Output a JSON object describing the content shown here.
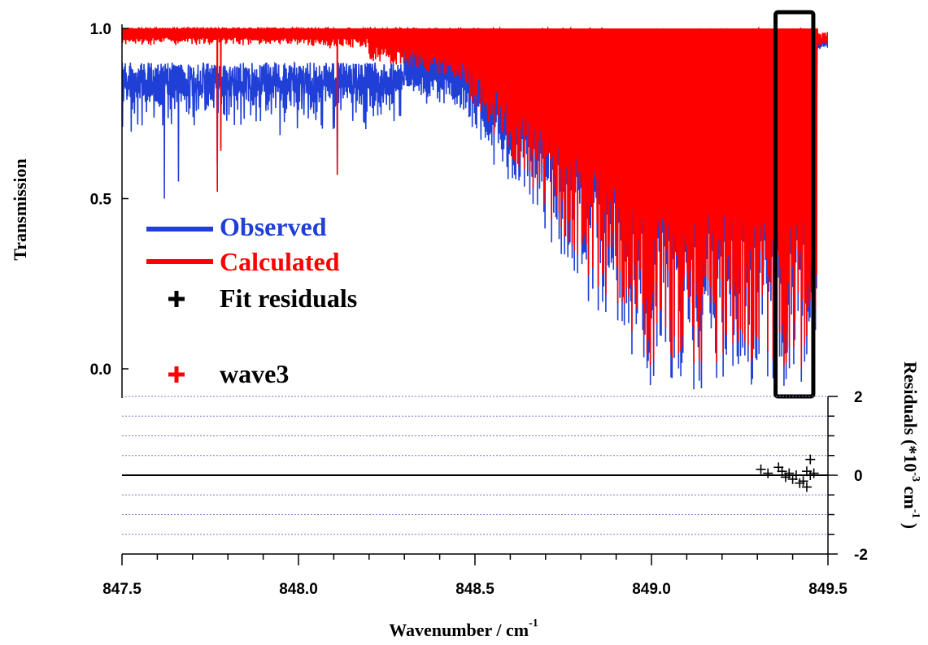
{
  "chart_data": {
    "type": "line",
    "top_panel": {
      "ylabel": "Transmission",
      "y_ticks": [
        "0.0",
        "0.5",
        "1.0"
      ],
      "y_tick_values": [
        0.0,
        0.5,
        1.0
      ],
      "ylim": [
        -0.08,
        1.0
      ],
      "series": [
        {
          "name": "Observed",
          "color": "#1f3fd6",
          "style": "line"
        },
        {
          "name": "Calculated",
          "color": "#ff0000",
          "style": "line"
        },
        {
          "name": "Fit residuals",
          "color": "#000000",
          "style": "plus"
        },
        {
          "name": "wave3",
          "color": "#ff0000",
          "style": "plus"
        }
      ],
      "highlight_box_x_range": [
        849.37,
        849.44
      ],
      "absorption_lines_sample": [
        {
          "x": 847.62,
          "observed": 0.5,
          "calculated": 0.97
        },
        {
          "x": 847.77,
          "observed": 0.62,
          "calculated": 0.52
        },
        {
          "x": 848.11,
          "observed": 0.57,
          "calculated": 0.57
        },
        {
          "x": 848.5,
          "observed": 0.45,
          "calculated": 0.5
        },
        {
          "x": 848.75,
          "observed": 0.02,
          "calculated": 0.05
        },
        {
          "x": 849.0,
          "observed": 0.0,
          "calculated": 0.05
        },
        {
          "x": 849.2,
          "observed": -0.07,
          "calculated": 0.0
        },
        {
          "x": 849.4,
          "observed": -0.05,
          "calculated": 0.02
        },
        {
          "x": 849.49,
          "observed": 0.99,
          "calculated": 0.99
        }
      ]
    },
    "bottom_panel": {
      "ylabel": "Residuals (*10",
      "ylabel_sup1": "-3",
      "ylabel_unit": "cm",
      "ylabel_sup2": "-1",
      "ylabel_close": ")",
      "y_ticks": [
        "-2",
        "0",
        "2"
      ],
      "y_tick_values": [
        -2,
        0,
        2
      ],
      "ylim": [
        -2,
        2
      ],
      "residuals": [
        {
          "x": 849.31,
          "y": 0.15
        },
        {
          "x": 849.33,
          "y": 0.05
        },
        {
          "x": 849.36,
          "y": 0.2
        },
        {
          "x": 849.37,
          "y": 0.1
        },
        {
          "x": 849.38,
          "y": -0.05
        },
        {
          "x": 849.39,
          "y": 0.05
        },
        {
          "x": 849.4,
          "y": -0.1
        },
        {
          "x": 849.41,
          "y": 0.0
        },
        {
          "x": 849.42,
          "y": -0.2
        },
        {
          "x": 849.43,
          "y": -0.15
        },
        {
          "x": 849.44,
          "y": 0.1
        },
        {
          "x": 849.44,
          "y": -0.3
        },
        {
          "x": 849.45,
          "y": 0.0
        },
        {
          "x": 849.45,
          "y": 0.4
        },
        {
          "x": 849.46,
          "y": 0.05
        }
      ]
    },
    "x": {
      "xlabel": "Wavenumber / cm",
      "xlabel_sup": "-1",
      "xlim": [
        847.5,
        849.5
      ],
      "ticks": [
        "847.5",
        "848.0",
        "848.5",
        "849.0",
        "849.5"
      ],
      "tick_values": [
        847.5,
        848.0,
        848.5,
        849.0,
        849.5
      ]
    }
  },
  "legend": {
    "observed": "Observed",
    "calculated": "Calculated",
    "fit_residuals": "Fit residuals",
    "wave3": "wave3"
  },
  "colors": {
    "observed": "#1f3fd6",
    "calculated": "#ff0000",
    "residuals": "#000000",
    "grid": "#7777cc"
  }
}
